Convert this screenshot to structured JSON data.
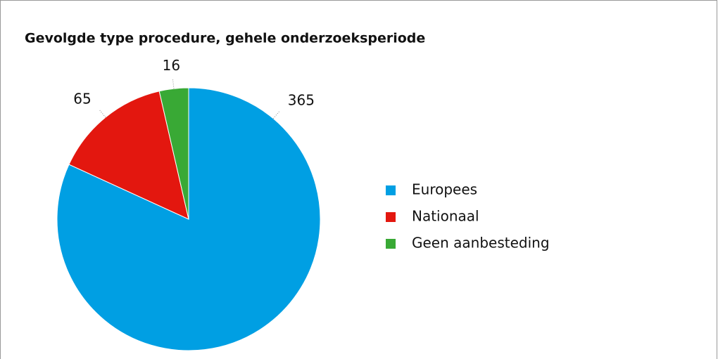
{
  "chart_data": {
    "type": "pie",
    "title": "Gevolgde type procedure, gehele onderzoeksperiode",
    "categories": [
      "Europees",
      "Nationaal",
      "Geen aanbesteding"
    ],
    "values": [
      365,
      65,
      16
    ],
    "colors": [
      "#009fe3",
      "#e3170f",
      "#39a935"
    ],
    "legend": "right"
  }
}
